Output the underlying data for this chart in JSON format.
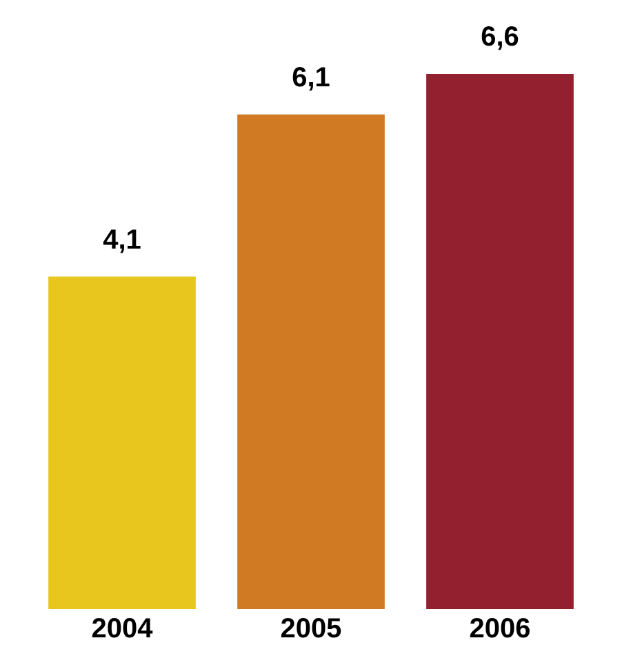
{
  "chart_data": {
    "type": "bar",
    "categories": [
      "2004",
      "2005",
      "2006"
    ],
    "values": [
      4.1,
      6.1,
      6.6
    ],
    "value_labels": [
      "4,1",
      "6,1",
      "6,6"
    ],
    "colors": [
      "#e8c61e",
      "#d07a24",
      "#92202e"
    ],
    "grid": false,
    "legend": false
  }
}
